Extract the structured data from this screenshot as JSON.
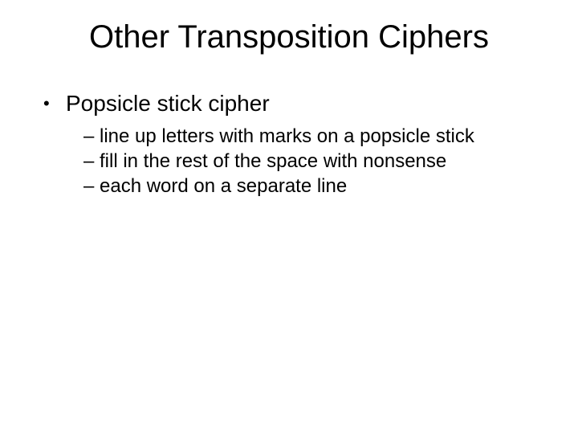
{
  "slide": {
    "title": "Other Transposition Ciphers",
    "title_fontsize": 40,
    "title_color": "#000000",
    "background_color": "#ffffff",
    "bullets": [
      {
        "level": 1,
        "marker": "•",
        "text": "Popsicle stick cipher",
        "fontsize": 28,
        "children": [
          {
            "level": 2,
            "marker": "–",
            "text": "line up letters with marks on a popsicle stick",
            "fontsize": 24
          },
          {
            "level": 2,
            "marker": "–",
            "text": "fill in the rest of the space with nonsense",
            "fontsize": 24
          },
          {
            "level": 2,
            "marker": "–",
            "text": "each word on a separate line",
            "fontsize": 24
          }
        ]
      }
    ]
  }
}
